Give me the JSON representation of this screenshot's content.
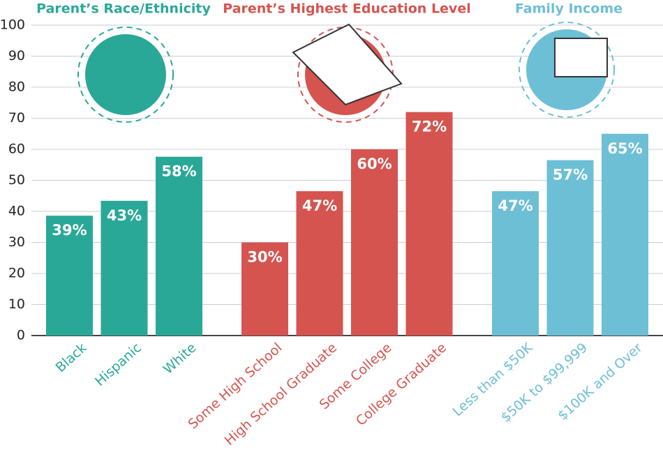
{
  "chart_data": {
    "type": "bar",
    "ylim": [
      0,
      100
    ],
    "yticks": [
      0,
      10,
      20,
      30,
      40,
      50,
      60,
      70,
      80,
      90,
      100
    ],
    "grid": true,
    "groups": [
      {
        "name": "Parent’s Race/Ethnicity",
        "color": "#2aa897",
        "categories": [
          "Black",
          "Hispanic",
          "White"
        ],
        "values": [
          38.6,
          43.4,
          57.6
        ],
        "value_labels": [
          "39%",
          "43%",
          "58%"
        ]
      },
      {
        "name": "Parent’s Highest Education Level",
        "color": "#d5544f",
        "categories": [
          "Some High School",
          "High School Graduate",
          "Some College",
          "College Graduate"
        ],
        "values": [
          30,
          46.5,
          60,
          72
        ],
        "value_labels": [
          "30%",
          "47%",
          "60%",
          "72%"
        ]
      },
      {
        "name": "Family Income",
        "color": "#6dbfd5",
        "categories": [
          "Less than $50K",
          "$50K to $99,999",
          "$100K and Over"
        ],
        "values": [
          46.5,
          56.5,
          65
        ],
        "value_labels": [
          "47%",
          "57%",
          "65%"
        ]
      }
    ]
  }
}
